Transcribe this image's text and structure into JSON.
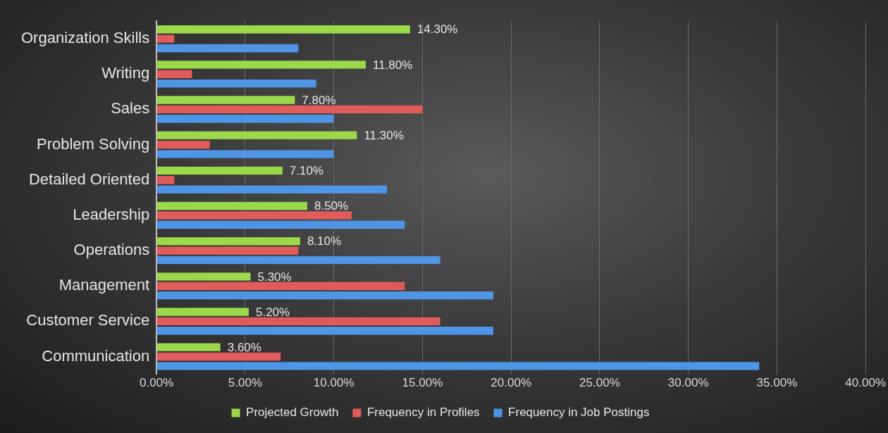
{
  "chart_data": {
    "type": "bar",
    "orientation": "horizontal",
    "categories": [
      "Organization Skills",
      "Writing",
      "Sales",
      "Problem Solving",
      "Detailed Oriented",
      "Leadership",
      "Operations",
      "Management",
      "Customer Service",
      "Communication"
    ],
    "series": [
      {
        "name": "Projected Growth",
        "color": "#9bd94a",
        "values": [
          14.3,
          11.8,
          7.8,
          11.3,
          7.1,
          8.5,
          8.1,
          5.3,
          5.2,
          3.6
        ],
        "value_labels": [
          "14.30%",
          "11.80%",
          "7.80%",
          "11.30%",
          "7.10%",
          "8.50%",
          "8.10%",
          "5.30%",
          "5.20%",
          "3.60%"
        ]
      },
      {
        "name": "Frequency in Profiles",
        "color": "#e25b5b",
        "values": [
          1,
          2,
          15,
          3,
          1,
          11,
          8,
          14,
          16,
          7
        ]
      },
      {
        "name": "Frequency in Job Postings",
        "color": "#4f95e6",
        "values": [
          8,
          9,
          10,
          10,
          13,
          14,
          16,
          19,
          19,
          34
        ]
      }
    ],
    "xlim": [
      0,
      40
    ],
    "xticks": [
      {
        "value": 0,
        "label": "0.00%"
      },
      {
        "value": 5,
        "label": "5.00%"
      },
      {
        "value": 10,
        "label": "10.00%"
      },
      {
        "value": 15,
        "label": "15.00%"
      },
      {
        "value": 20,
        "label": "20.00%"
      },
      {
        "value": 25,
        "label": "25.00%"
      },
      {
        "value": 30,
        "label": "30.00%"
      },
      {
        "value": 35,
        "label": "35.00%"
      },
      {
        "value": 40,
        "label": "40.00%"
      }
    ],
    "grid": "x",
    "legend": "bottom"
  }
}
